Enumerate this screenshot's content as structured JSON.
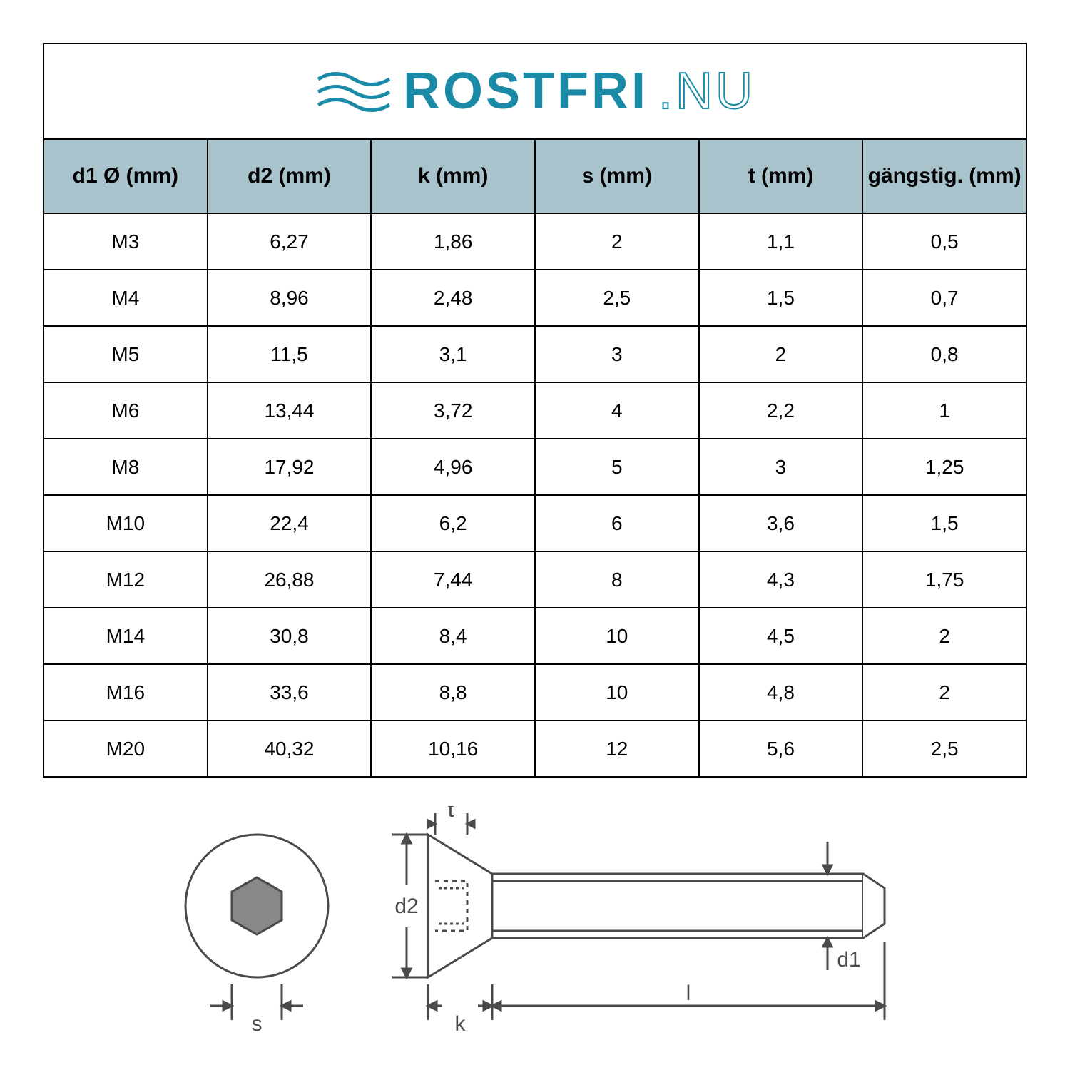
{
  "logo": {
    "text1": "ROSTFRI",
    "text2": ".NU",
    "wave_color": "#1b8aa6",
    "text_color": "#1b8aa6"
  },
  "table": {
    "header_bg": "#a8c3cc",
    "border_color": "#000000",
    "columns": [
      "d1 Ø (mm)",
      "d2 (mm)",
      "k (mm)",
      "s (mm)",
      "t (mm)",
      "gängstig. (mm)"
    ],
    "rows": [
      [
        "M3",
        "6,27",
        "1,86",
        "2",
        "1,1",
        "0,5"
      ],
      [
        "M4",
        "8,96",
        "2,48",
        "2,5",
        "1,5",
        "0,7"
      ],
      [
        "M5",
        "11,5",
        "3,1",
        "3",
        "2",
        "0,8"
      ],
      [
        "M6",
        "13,44",
        "3,72",
        "4",
        "2,2",
        "1"
      ],
      [
        "M8",
        "17,92",
        "4,96",
        "5",
        "3",
        "1,25"
      ],
      [
        "M10",
        "22,4",
        "6,2",
        "6",
        "3,6",
        "1,5"
      ],
      [
        "M12",
        "26,88",
        "7,44",
        "8",
        "4,3",
        "1,75"
      ],
      [
        "M14",
        "30,8",
        "8,4",
        "10",
        "4,5",
        "2"
      ],
      [
        "M16",
        "33,6",
        "8,8",
        "10",
        "4,8",
        "2"
      ],
      [
        "M20",
        "40,32",
        "10,16",
        "12",
        "5,6",
        "2,5"
      ]
    ]
  },
  "diagram": {
    "labels": {
      "s": "s",
      "d2": "d2",
      "t": "t",
      "k": "k",
      "l": "l",
      "d1": "d1"
    },
    "stroke_color": "#4a4a4a",
    "text_color": "#4a4a4a"
  }
}
